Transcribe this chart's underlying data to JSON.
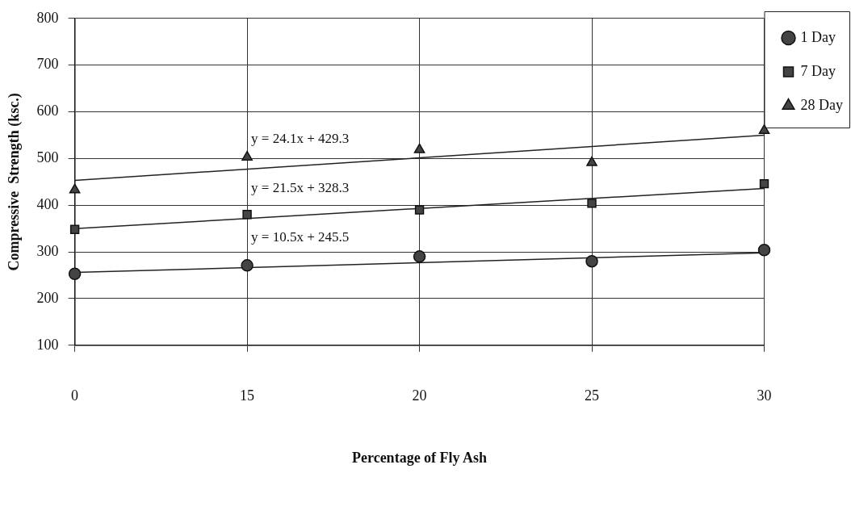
{
  "chart_data": {
    "type": "scatter",
    "xlabel": "Percentage of Fly Ash",
    "ylabel": "Compressive  Strength (ksc.)",
    "categories": [
      "0",
      "15",
      "20",
      "25",
      "30"
    ],
    "ylim": [
      100,
      800
    ],
    "yticks": [
      100,
      200,
      300,
      400,
      500,
      600,
      700,
      800
    ],
    "grid": true,
    "legend": "right",
    "series": [
      {
        "name": "1 Day",
        "color": "#444444",
        "marker": "circle",
        "values": [
          253,
          271,
          290,
          280,
          304
        ]
      },
      {
        "name": "7 Day",
        "color": "#444444",
        "marker": "square",
        "values": [
          348,
          380,
          390,
          404,
          446
        ]
      },
      {
        "name": "28 Day",
        "color": "#444444",
        "marker": "triangle",
        "values": [
          433,
          503,
          519,
          491,
          560
        ]
      },
      {
        "type": "line",
        "color": "#222222",
        "marker": "none",
        "x": [
          "0",
          "30"
        ],
        "values": [
          256,
          298
        ]
      },
      {
        "type": "line",
        "color": "#222222",
        "marker": "none",
        "x": [
          "0",
          "30"
        ],
        "values": [
          350,
          436
        ]
      },
      {
        "type": "line",
        "color": "#222222",
        "marker": "none",
        "x": [
          "0",
          "30"
        ],
        "values": [
          453,
          550
        ]
      }
    ],
    "annotations": [
      "y = 24.1x + 429.3",
      "y = 21.5x + 328.3",
      "y = 10.5x + 245.5"
    ]
  }
}
